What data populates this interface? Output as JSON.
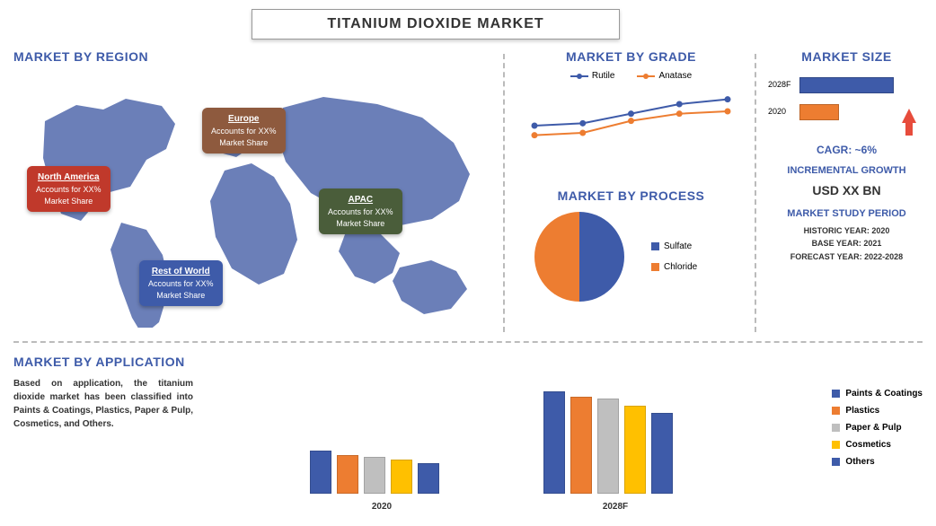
{
  "title": "TITANIUM DIOXIDE MARKET",
  "colors": {
    "primary": "#3e5ba9",
    "orange": "#ed7d31",
    "gray": "#bfbfbf",
    "yellow": "#ffc000",
    "map": "#6b7fb8"
  },
  "regions_title": "MARKET BY REGION",
  "regions": {
    "na": {
      "title": "North America",
      "line1": "Accounts for XX%",
      "line2": "Market Share"
    },
    "eu": {
      "title": "Europe",
      "line1": "Accounts for XX%",
      "line2": "Market Share"
    },
    "apac": {
      "title": "APAC",
      "line1": "Accounts for XX%",
      "line2": "Market Share"
    },
    "row": {
      "title": "Rest of World",
      "line1": "Accounts for XX%",
      "line2": "Market Share"
    }
  },
  "grade": {
    "title": "MARKET BY GRADE",
    "series": [
      {
        "name": "Rutile",
        "color": "#3e5ba9",
        "values": [
          30,
          32,
          40,
          48,
          52
        ]
      },
      {
        "name": "Anatase",
        "color": "#ed7d31",
        "values": [
          22,
          24,
          34,
          40,
          42
        ]
      }
    ],
    "xpoints": [
      0,
      1,
      2,
      3,
      4
    ]
  },
  "process": {
    "title": "MARKET BY PROCESS",
    "slices": [
      {
        "name": "Sulfate",
        "color": "#3e5ba9",
        "pct": 50
      },
      {
        "name": "Chloride",
        "color": "#ed7d31",
        "pct": 50
      }
    ]
  },
  "size": {
    "title": "MARKET SIZE",
    "bars": [
      {
        "label": "2028F",
        "value": 100,
        "color": "#3e5ba9"
      },
      {
        "label": "2020",
        "value": 42,
        "color": "#ed7d31"
      }
    ],
    "cagr_label": "CAGR:  ~6%",
    "incr_title": "INCREMENTAL GROWTH",
    "incr_value": "USD XX BN",
    "study_title": "MARKET STUDY PERIOD",
    "study_lines": [
      "HISTORIC YEAR: 2020",
      "BASE YEAR: 2021",
      "FORECAST YEAR: 2022-2028"
    ]
  },
  "application": {
    "title": "MARKET BY APPLICATION",
    "description": "Based on application, the titanium dioxide market has been classified into Paints & Coatings, Plastics, Paper & Pulp, Cosmetics, and Others.",
    "categories": [
      "Paints & Coatings",
      "Plastics",
      "Paper & Pulp",
      "Cosmetics",
      "Others"
    ],
    "colors": [
      "#3e5ba9",
      "#ed7d31",
      "#bfbfbf",
      "#ffc000",
      "#3e5ba9"
    ],
    "groups": [
      {
        "label": "2020",
        "values": [
          40,
          36,
          34,
          32,
          28
        ]
      },
      {
        "label": "2028F",
        "values": [
          95,
          90,
          88,
          82,
          75
        ]
      }
    ],
    "ymax": 100
  }
}
